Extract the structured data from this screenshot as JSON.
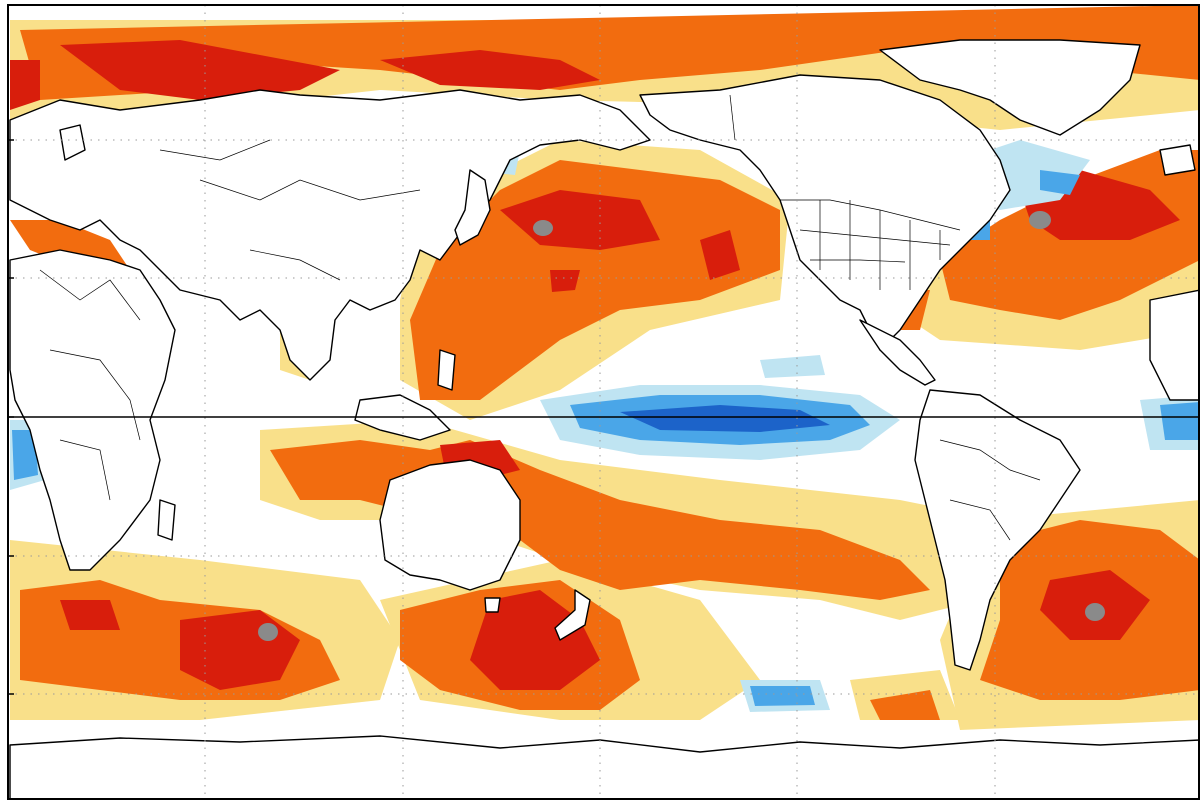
{
  "map": {
    "projection": "equirectangular",
    "center_longitude": 180,
    "graticule": "dotted",
    "equator_line": true,
    "palette": {
      "ocean_neutral": "#ffffff",
      "land_fill": "#ffffff",
      "coastline": "#000000",
      "warm_1": "#f9e08a",
      "warm_2": "#f6cd54",
      "warm_3": "#f26c0f",
      "warm_4": "#d81e0c",
      "warm_5": "#8a8a8a",
      "cool_1": "#bfe4f2",
      "cool_2": "#4aa6e8",
      "cool_3": "#1c63c9"
    }
  }
}
